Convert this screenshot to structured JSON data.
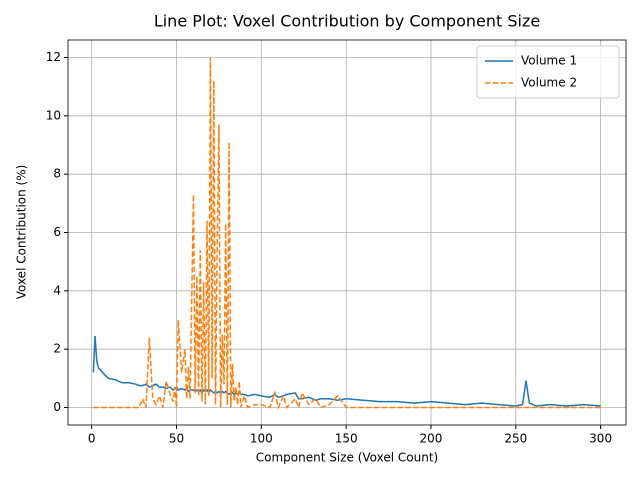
{
  "chart_data": {
    "type": "line",
    "title": "Line Plot: Voxel Contribution by Component Size",
    "x_label": "Component Size (Voxel Count)",
    "y_label": "Voxel Contribution (%)",
    "x": [
      1,
      2,
      3,
      4,
      5,
      8,
      10,
      14,
      18,
      22,
      26,
      28,
      30,
      32,
      34,
      36,
      38,
      40,
      42,
      44,
      46,
      48,
      49,
      50,
      51,
      53,
      55,
      56,
      57,
      58,
      60,
      61,
      62,
      63,
      64,
      65,
      66,
      67,
      68,
      69,
      70,
      71,
      72,
      73,
      74,
      75,
      76,
      77,
      78,
      79,
      80,
      81,
      82,
      83,
      84,
      85,
      86,
      87,
      88,
      90,
      92,
      96,
      100,
      105,
      108,
      110,
      113,
      115,
      120,
      122,
      124,
      128,
      132,
      135,
      140,
      145,
      150,
      160,
      170,
      180,
      190,
      200,
      210,
      220,
      230,
      240,
      250,
      254,
      256,
      258,
      262,
      270,
      280,
      290,
      300
    ],
    "series": [
      {
        "name": "Volume 1",
        "color": "#1f77b4",
        "dashed": false,
        "values": [
          1.2,
          2.45,
          1.6,
          1.35,
          1.3,
          1.1,
          1.0,
          0.95,
          0.85,
          0.85,
          0.8,
          0.75,
          0.75,
          0.8,
          0.7,
          0.75,
          0.8,
          0.7,
          0.7,
          0.65,
          0.7,
          0.6,
          0.65,
          0.7,
          0.6,
          0.65,
          0.6,
          0.65,
          0.55,
          0.6,
          0.6,
          0.55,
          0.6,
          0.55,
          0.6,
          0.5,
          0.6,
          0.55,
          0.6,
          0.5,
          0.6,
          0.55,
          0.5,
          0.55,
          0.5,
          0.55,
          0.5,
          0.55,
          0.5,
          0.55,
          0.5,
          0.45,
          0.5,
          0.5,
          0.45,
          0.5,
          0.45,
          0.5,
          0.45,
          0.45,
          0.4,
          0.45,
          0.4,
          0.35,
          0.45,
          0.35,
          0.4,
          0.45,
          0.5,
          0.3,
          0.3,
          0.35,
          0.25,
          0.3,
          0.3,
          0.25,
          0.3,
          0.25,
          0.2,
          0.2,
          0.15,
          0.2,
          0.15,
          0.1,
          0.15,
          0.1,
          0.05,
          0.1,
          0.92,
          0.15,
          0.05,
          0.1,
          0.05,
          0.1,
          0.05
        ]
      },
      {
        "name": "Volume 2",
        "color": "#ff7f0e",
        "dashed": true,
        "values": [
          0,
          0,
          0,
          0,
          0,
          0,
          0,
          0,
          0,
          0,
          0,
          0,
          0.3,
          0,
          2.4,
          0.3,
          0.1,
          0.4,
          0,
          0.9,
          0.5,
          0.2,
          0.7,
          0,
          3.0,
          1.2,
          2.0,
          0.3,
          1.4,
          0.3,
          7.3,
          0.5,
          4.5,
          0.4,
          5.4,
          0.2,
          4.3,
          0.1,
          6.4,
          0.4,
          12.0,
          1.0,
          11.2,
          0.1,
          5.5,
          9.7,
          0,
          2.5,
          0.8,
          6.3,
          0.1,
          9.1,
          0,
          1.5,
          0.2,
          0.7,
          0.1,
          0.9,
          0,
          0.4,
          0,
          0.1,
          0.1,
          0,
          0.5,
          0,
          0.4,
          0,
          0.3,
          0,
          0.5,
          0.1,
          0.3,
          0,
          0.1,
          0.4,
          0,
          0,
          0,
          0,
          0,
          0,
          0,
          0,
          0,
          0,
          0,
          0,
          0,
          0,
          0,
          0,
          0,
          0,
          0
        ]
      }
    ],
    "xlim": [
      -13.95,
      314.95
    ],
    "ylim": [
      -0.6,
      12.6
    ],
    "xticks": [
      0,
      50,
      100,
      150,
      200,
      250,
      300
    ],
    "yticks": [
      0,
      2,
      4,
      6,
      8,
      10,
      12
    ],
    "grid": true,
    "legend": "upper-right"
  }
}
